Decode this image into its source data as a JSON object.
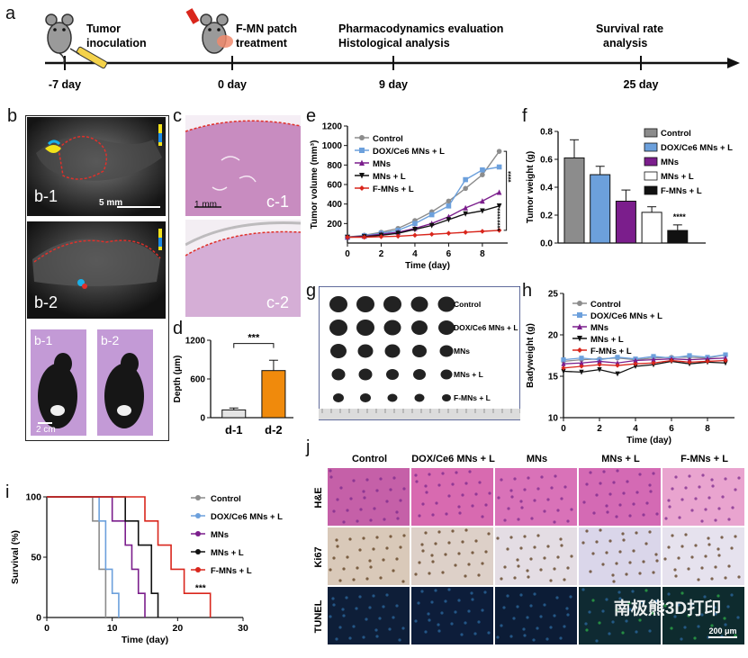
{
  "panel_labels": {
    "a": "a",
    "b": "b",
    "c": "c",
    "d": "d",
    "e": "e",
    "f": "f",
    "g": "g",
    "h": "h",
    "i": "i",
    "j": "j"
  },
  "timeline": {
    "ticks": [
      {
        "day": "-7 day",
        "l1": "Tumor",
        "l2": "inoculation"
      },
      {
        "day": "0 day",
        "l1": "F-MN patch",
        "l2": "treatment"
      },
      {
        "day": "9 day",
        "l1": "Pharmacodynamics evaluation",
        "l2": "Histological analysis"
      },
      {
        "day": "25 day",
        "l1": "Survival rate",
        "l2": "analysis"
      }
    ]
  },
  "panel_b": {
    "b1": "b-1",
    "b2": "b-2",
    "scale1": "5 mm",
    "photo1": "b-1",
    "photo2": "b-2",
    "scale2": "2 cm"
  },
  "panel_c": {
    "c1": "c-1",
    "c2": "c-2",
    "scale": "1 mm"
  },
  "colors": {
    "control": "#8c8c8c",
    "dox": "#6ca0dc",
    "mns": "#7b1e8c",
    "mnsl": "#111111",
    "fmns": "#d9261c",
    "d1": "#e4e4e4",
    "d2": "#f08a0c"
  },
  "legend_names": [
    "Control",
    "DOX/Ce6 MNs + L",
    "MNs",
    "MNs + L",
    "F-MNs + L"
  ],
  "chart_data": [
    {
      "id": "d",
      "type": "bar",
      "categories": [
        "d-1",
        "d-2"
      ],
      "values": [
        120,
        730
      ],
      "errors": [
        30,
        160
      ],
      "ylabel": "Depth (μm)",
      "ylim": [
        0,
        1200
      ],
      "yticks": [
        0,
        600,
        1200
      ],
      "annotation": "***"
    },
    {
      "id": "e",
      "type": "line",
      "x": [
        0,
        1,
        2,
        3,
        4,
        5,
        6,
        7,
        8,
        9
      ],
      "xlabel": "Time (day)",
      "ylabel": "Tumor volume (mm³)",
      "xlim": [
        0,
        9.5
      ],
      "ylim": [
        0,
        1200
      ],
      "xticks": [
        0,
        2,
        4,
        6,
        8
      ],
      "yticks": [
        200,
        400,
        600,
        800,
        1000,
        1200
      ],
      "series": [
        {
          "name": "Control",
          "values": [
            60,
            80,
            110,
            150,
            230,
            320,
            430,
            560,
            700,
            940
          ]
        },
        {
          "name": "DOX/Ce6 MNs + L",
          "values": [
            60,
            75,
            100,
            130,
            200,
            290,
            380,
            650,
            750,
            780
          ]
        },
        {
          "name": "MNs",
          "values": [
            60,
            70,
            90,
            110,
            150,
            200,
            270,
            360,
            430,
            520
          ]
        },
        {
          "name": "MNs + L",
          "values": [
            60,
            65,
            80,
            100,
            140,
            180,
            240,
            300,
            330,
            380
          ]
        },
        {
          "name": "F-MNs + L",
          "values": [
            60,
            60,
            65,
            70,
            80,
            90,
            100,
            110,
            120,
            130
          ]
        }
      ],
      "annotations": [
        "****",
        "****",
        "****"
      ]
    },
    {
      "id": "f",
      "type": "bar",
      "categories": [
        "Control",
        "DOX/Ce6 MNs + L",
        "MNs",
        "MNs + L",
        "F-MNs + L"
      ],
      "values": [
        0.61,
        0.49,
        0.3,
        0.22,
        0.09
      ],
      "errors": [
        0.13,
        0.06,
        0.08,
        0.04,
        0.04
      ],
      "ylabel": "Tumor weight (g)",
      "ylim": [
        0,
        0.8
      ],
      "yticks": [
        0.0,
        0.2,
        0.4,
        0.6,
        0.8
      ],
      "annotation": "****"
    },
    {
      "id": "h",
      "type": "line",
      "x": [
        0,
        1,
        2,
        3,
        4,
        5,
        6,
        7,
        8,
        9
      ],
      "xlabel": "Time (day)",
      "ylabel": "Badyweight (g)",
      "xlim": [
        0,
        9.5
      ],
      "ylim": [
        10,
        25
      ],
      "xticks": [
        0,
        2,
        4,
        6,
        8
      ],
      "yticks": [
        10,
        15,
        20,
        25
      ],
      "series": [
        {
          "name": "Control",
          "values": [
            16.8,
            17.0,
            17.1,
            17.2,
            17.0,
            17.2,
            17.3,
            17.3,
            17.2,
            17.6
          ]
        },
        {
          "name": "DOX/Ce6 MNs + L",
          "values": [
            17.0,
            17.2,
            17.0,
            17.3,
            17.1,
            17.4,
            17.2,
            17.5,
            17.3,
            17.6
          ]
        },
        {
          "name": "MNs",
          "values": [
            16.5,
            16.6,
            16.8,
            16.6,
            16.9,
            17.0,
            17.1,
            17.0,
            17.1,
            17.2
          ]
        },
        {
          "name": "MNs + L",
          "values": [
            15.6,
            15.5,
            15.8,
            15.3,
            16.2,
            16.4,
            16.8,
            16.5,
            16.7,
            16.6
          ]
        },
        {
          "name": "F-MNs + L",
          "values": [
            16.0,
            16.2,
            16.4,
            16.3,
            16.5,
            16.6,
            16.9,
            16.7,
            16.8,
            16.9
          ]
        }
      ]
    },
    {
      "id": "i",
      "type": "line",
      "xlabel": "Time (day)",
      "ylabel": "Survival (%)",
      "xlim": [
        0,
        30
      ],
      "ylim": [
        0,
        100
      ],
      "xticks": [
        0,
        10,
        20,
        30
      ],
      "yticks": [
        0,
        50,
        100
      ],
      "series": [
        {
          "name": "Control",
          "x": [
            0,
            7,
            7,
            8,
            8,
            9,
            9
          ],
          "values": [
            100,
            100,
            80,
            80,
            40,
            40,
            0
          ]
        },
        {
          "name": "DOX/Ce6 MNs + L",
          "x": [
            0,
            8,
            8,
            9,
            9,
            10,
            10,
            11,
            11
          ],
          "values": [
            100,
            100,
            80,
            80,
            40,
            40,
            20,
            20,
            0
          ]
        },
        {
          "name": "MNs",
          "x": [
            0,
            10,
            10,
            12,
            12,
            13,
            13,
            14,
            14,
            15,
            15
          ],
          "values": [
            100,
            100,
            80,
            80,
            60,
            60,
            40,
            40,
            20,
            20,
            0
          ]
        },
        {
          "name": "MNs + L",
          "x": [
            0,
            12,
            12,
            14,
            14,
            16,
            16,
            17,
            17
          ],
          "values": [
            100,
            100,
            80,
            80,
            60,
            60,
            20,
            20,
            0
          ]
        },
        {
          "name": "F-MNs + L",
          "x": [
            0,
            15,
            15,
            17,
            17,
            19,
            19,
            21,
            21,
            22,
            22,
            25,
            25
          ],
          "values": [
            100,
            100,
            80,
            80,
            60,
            60,
            40,
            40,
            20,
            20,
            20,
            20,
            0
          ]
        }
      ],
      "annotation": "***"
    }
  ],
  "panel_g": {
    "rows": [
      "Control",
      "DOX/Ce6 MNs + L",
      "MNs",
      "MNs + L",
      "F-MNs + L"
    ]
  },
  "panel_j": {
    "cols": [
      "Control",
      "DOX/Ce6 MNs + L",
      "MNs",
      "MNs + L",
      "F-MNs + L"
    ],
    "rows": [
      "H&E",
      "Ki67",
      "TUNEL"
    ],
    "scale": "200 μm",
    "watermark": "南极熊3D打印"
  }
}
